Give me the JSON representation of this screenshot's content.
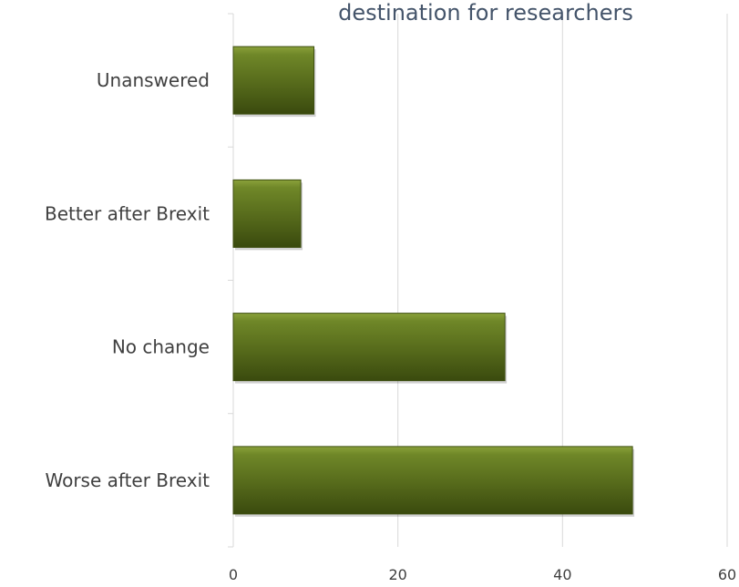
{
  "chart_data": {
    "type": "bar",
    "orientation": "horizontal",
    "title": "destination for researchers",
    "categories": [
      "Worse after Brexit",
      "No change",
      "Better after Brexit",
      "Unanswered"
    ],
    "values": [
      48.5,
      33,
      8.2,
      9.8
    ],
    "xlim": [
      0,
      60
    ],
    "xticks": [
      "0",
      "20",
      "40",
      "60"
    ],
    "grid": "vertical",
    "bar_color": "#5a6e1d",
    "xlabel": "",
    "ylabel": ""
  }
}
